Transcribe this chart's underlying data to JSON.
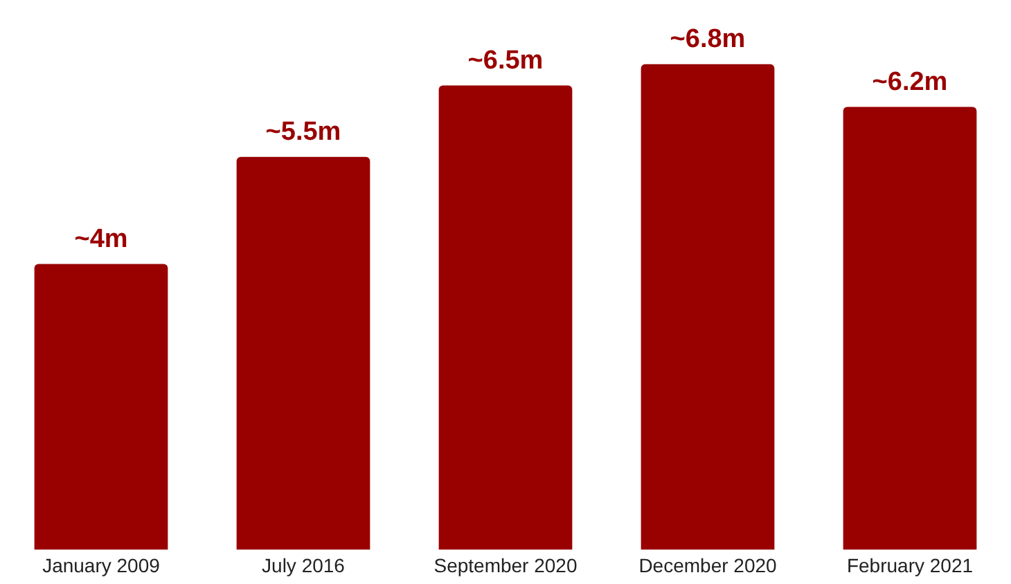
{
  "chart_data": {
    "type": "bar",
    "categories": [
      "January 2009",
      "July 2016",
      "September 2020",
      "December 2020",
      "February 2021"
    ],
    "values": [
      4,
      5.5,
      6.5,
      6.8,
      6.2
    ],
    "color": "#990000",
    "value_labels": [
      "~4m",
      "~5.5m",
      "~6.5m",
      "~6.8m",
      "~6.2m"
    ],
    "grid": false,
    "legend": false,
    "tick_labels": "x"
  }
}
